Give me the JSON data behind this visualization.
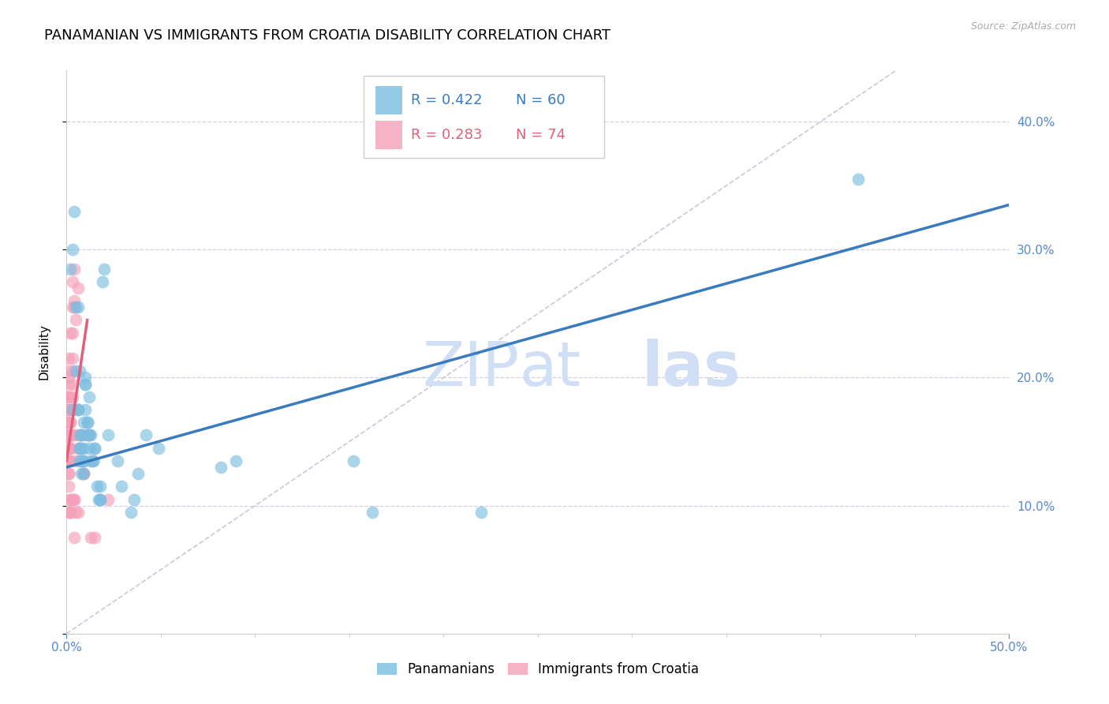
{
  "title": "PANAMANIAN VS IMMIGRANTS FROM CROATIA DISABILITY CORRELATION CHART",
  "source": "Source: ZipAtlas.com",
  "ylabel": "Disability",
  "xlim": [
    0.0,
    0.5
  ],
  "ylim": [
    0.0,
    0.44
  ],
  "blue_color": "#7bbde0",
  "pink_color": "#f4a0b8",
  "blue_line_color": "#3a7abf",
  "pink_line_color": "#e0607a",
  "diag_line_color": "#c8c8d8",
  "watermark_color": "#d0dff5",
  "legend_R_blue": "R = 0.422",
  "legend_N_blue": "N = 60",
  "legend_R_pink": "R = 0.283",
  "legend_N_pink": "N = 74",
  "legend_label_blue": "Panamanians",
  "legend_label_pink": "Immigrants from Croatia",
  "tick_color": "#5588cc",
  "title_fontsize": 13,
  "axis_label_fontsize": 11,
  "tick_fontsize": 11,
  "blue_scatter": [
    [
      0.002,
      0.285
    ],
    [
      0.003,
      0.3
    ],
    [
      0.003,
      0.175
    ],
    [
      0.004,
      0.33
    ],
    [
      0.005,
      0.205
    ],
    [
      0.005,
      0.255
    ],
    [
      0.006,
      0.255
    ],
    [
      0.006,
      0.175
    ],
    [
      0.006,
      0.175
    ],
    [
      0.007,
      0.155
    ],
    [
      0.007,
      0.205
    ],
    [
      0.007,
      0.145
    ],
    [
      0.007,
      0.145
    ],
    [
      0.007,
      0.135
    ],
    [
      0.008,
      0.155
    ],
    [
      0.008,
      0.145
    ],
    [
      0.008,
      0.135
    ],
    [
      0.008,
      0.125
    ],
    [
      0.009,
      0.145
    ],
    [
      0.009,
      0.135
    ],
    [
      0.009,
      0.135
    ],
    [
      0.009,
      0.125
    ],
    [
      0.009,
      0.165
    ],
    [
      0.01,
      0.2
    ],
    [
      0.01,
      0.195
    ],
    [
      0.01,
      0.195
    ],
    [
      0.01,
      0.175
    ],
    [
      0.011,
      0.165
    ],
    [
      0.011,
      0.155
    ],
    [
      0.011,
      0.165
    ],
    [
      0.012,
      0.185
    ],
    [
      0.012,
      0.155
    ],
    [
      0.012,
      0.145
    ],
    [
      0.013,
      0.155
    ],
    [
      0.013,
      0.135
    ],
    [
      0.014,
      0.135
    ],
    [
      0.014,
      0.135
    ],
    [
      0.015,
      0.145
    ],
    [
      0.015,
      0.145
    ],
    [
      0.016,
      0.115
    ],
    [
      0.017,
      0.105
    ],
    [
      0.018,
      0.115
    ],
    [
      0.018,
      0.105
    ],
    [
      0.018,
      0.105
    ],
    [
      0.019,
      0.275
    ],
    [
      0.02,
      0.285
    ],
    [
      0.022,
      0.155
    ],
    [
      0.027,
      0.135
    ],
    [
      0.029,
      0.115
    ],
    [
      0.034,
      0.095
    ],
    [
      0.036,
      0.105
    ],
    [
      0.038,
      0.125
    ],
    [
      0.042,
      0.155
    ],
    [
      0.049,
      0.145
    ],
    [
      0.082,
      0.13
    ],
    [
      0.09,
      0.135
    ],
    [
      0.152,
      0.135
    ],
    [
      0.162,
      0.095
    ],
    [
      0.22,
      0.095
    ],
    [
      0.42,
      0.355
    ]
  ],
  "pink_scatter": [
    [
      0.0,
      0.155
    ],
    [
      0.0,
      0.145
    ],
    [
      0.0,
      0.135
    ],
    [
      0.0,
      0.185
    ],
    [
      0.0,
      0.175
    ],
    [
      0.0,
      0.165
    ],
    [
      0.0,
      0.155
    ],
    [
      0.0,
      0.15
    ],
    [
      0.001,
      0.145
    ],
    [
      0.001,
      0.135
    ],
    [
      0.001,
      0.125
    ],
    [
      0.001,
      0.115
    ],
    [
      0.001,
      0.215
    ],
    [
      0.001,
      0.205
    ],
    [
      0.001,
      0.195
    ],
    [
      0.001,
      0.185
    ],
    [
      0.001,
      0.175
    ],
    [
      0.001,
      0.165
    ],
    [
      0.001,
      0.155
    ],
    [
      0.001,
      0.145
    ],
    [
      0.001,
      0.135
    ],
    [
      0.001,
      0.125
    ],
    [
      0.001,
      0.095
    ],
    [
      0.001,
      0.2
    ],
    [
      0.002,
      0.185
    ],
    [
      0.002,
      0.175
    ],
    [
      0.002,
      0.165
    ],
    [
      0.002,
      0.155
    ],
    [
      0.002,
      0.145
    ],
    [
      0.002,
      0.135
    ],
    [
      0.002,
      0.105
    ],
    [
      0.002,
      0.095
    ],
    [
      0.002,
      0.175
    ],
    [
      0.002,
      0.165
    ],
    [
      0.002,
      0.155
    ],
    [
      0.002,
      0.145
    ],
    [
      0.002,
      0.135
    ],
    [
      0.002,
      0.105
    ],
    [
      0.002,
      0.095
    ],
    [
      0.002,
      0.235
    ],
    [
      0.003,
      0.215
    ],
    [
      0.003,
      0.205
    ],
    [
      0.003,
      0.185
    ],
    [
      0.003,
      0.155
    ],
    [
      0.003,
      0.105
    ],
    [
      0.003,
      0.255
    ],
    [
      0.003,
      0.235
    ],
    [
      0.003,
      0.195
    ],
    [
      0.003,
      0.175
    ],
    [
      0.003,
      0.275
    ],
    [
      0.004,
      0.26
    ],
    [
      0.004,
      0.105
    ],
    [
      0.004,
      0.255
    ],
    [
      0.004,
      0.075
    ],
    [
      0.004,
      0.285
    ],
    [
      0.004,
      0.105
    ],
    [
      0.005,
      0.245
    ],
    [
      0.005,
      0.135
    ],
    [
      0.005,
      0.095
    ],
    [
      0.005,
      0.155
    ],
    [
      0.006,
      0.095
    ],
    [
      0.006,
      0.175
    ],
    [
      0.006,
      0.145
    ],
    [
      0.006,
      0.27
    ],
    [
      0.007,
      0.155
    ],
    [
      0.008,
      0.155
    ],
    [
      0.009,
      0.125
    ],
    [
      0.009,
      0.125
    ],
    [
      0.01,
      0.155
    ],
    [
      0.011,
      0.155
    ],
    [
      0.012,
      0.155
    ],
    [
      0.013,
      0.075
    ],
    [
      0.015,
      0.075
    ],
    [
      0.022,
      0.105
    ]
  ],
  "blue_line_pts": [
    [
      0.0,
      0.13
    ],
    [
      0.5,
      0.335
    ]
  ],
  "pink_line_pts": [
    [
      0.0,
      0.135
    ],
    [
      0.011,
      0.245
    ]
  ],
  "diag_line_pts": [
    [
      0.0,
      0.0
    ],
    [
      0.44,
      0.44
    ]
  ],
  "ytick_positions": [
    0.1,
    0.2,
    0.3,
    0.4
  ],
  "ytick_labels": [
    "10.0%",
    "20.0%",
    "30.0%",
    "40.0%"
  ]
}
